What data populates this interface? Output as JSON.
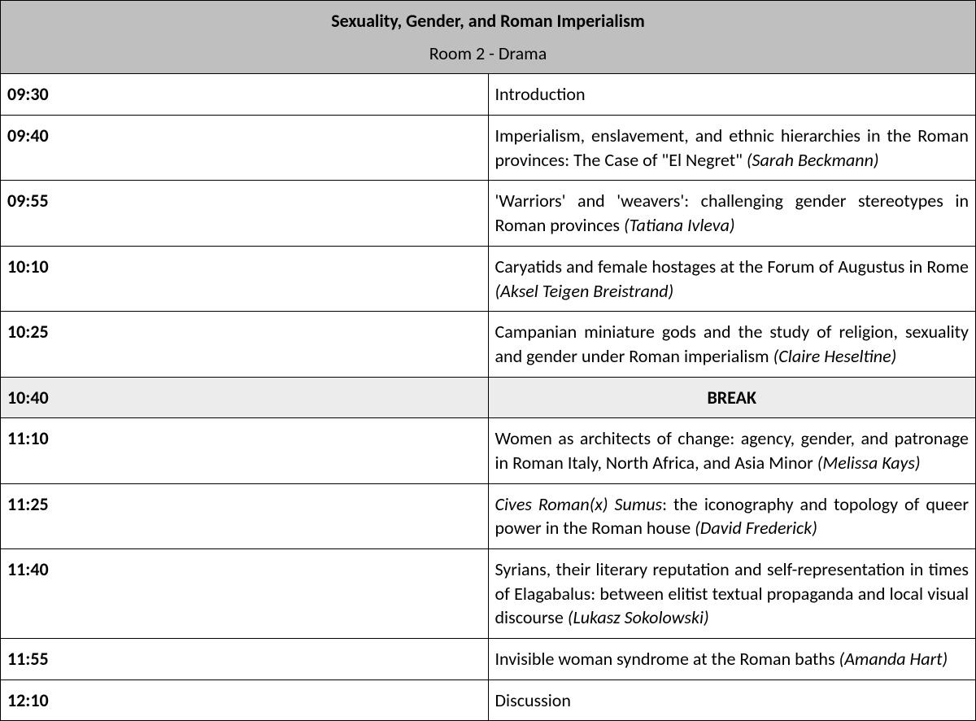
{
  "header": {
    "title": "Sexuality, Gender, and Roman Imperialism",
    "room": "Room 2 - Drama"
  },
  "colors": {
    "header_bg": "#bfbfbf",
    "break_bg": "#ececec",
    "border": "#000000",
    "text": "#000000"
  },
  "typography": {
    "font_family": "Calibri",
    "body_fontsize_pt": 16,
    "title_weight": 700
  },
  "rows": [
    {
      "time": "09:30",
      "text": "Introduction",
      "type": "plain"
    },
    {
      "time": "09:40",
      "text": "Imperialism, enslavement, and ethnic hierarchies in the Roman provinces: The Case of \"El Negret\"",
      "speaker": "(Sarah Beckmann)",
      "type": "talk"
    },
    {
      "time": "09:55",
      "text": "'Warriors' and 'weavers': challenging gender stereotypes in Roman provinces",
      "speaker": "(Tatiana Ivleva)",
      "type": "talk"
    },
    {
      "time": "10:10",
      "text": "Caryatids and female hostages at the Forum of Augustus in Rome",
      "speaker": "(Aksel Teigen Breistrand)",
      "type": "talk"
    },
    {
      "time": "10:25",
      "text": "Campanian miniature gods and the study of religion, sexuality and gender under Roman imperialism",
      "speaker": "(Claire Heseltine)",
      "type": "talk"
    },
    {
      "time": "10:40",
      "text": "BREAK",
      "type": "break"
    },
    {
      "time": "11:10",
      "text": "Women as architects of change: agency, gender, and patronage in Roman Italy, North Africa, and Asia Minor",
      "speaker": "(Melissa Kays)",
      "type": "talk"
    },
    {
      "time": "11:25",
      "title_italic": "Cives Roman(x) Sumus",
      "text_after": ": the iconography and topology of queer power in the Roman house",
      "speaker": "(David Frederick)",
      "type": "talk_italic_title"
    },
    {
      "time": "11:40",
      "text": "Syrians, their literary reputation and self-representation in times of Elagabalus: between elitist textual propaganda and local visual discourse",
      "speaker": "(Lukasz Sokolowski)",
      "type": "talk"
    },
    {
      "time": "11:55",
      "text": "Invisible woman syndrome at the Roman baths",
      "speaker": "(Amanda Hart)",
      "type": "talk"
    },
    {
      "time": "12:10",
      "text": "Discussion",
      "type": "plain"
    }
  ]
}
